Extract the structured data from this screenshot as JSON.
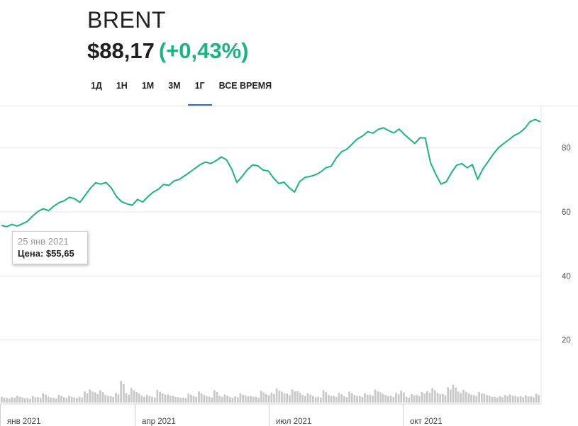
{
  "header": {
    "title": "BRENT",
    "price": "$88,17",
    "change": "(+0,43%)"
  },
  "colors": {
    "line": "#1ab482",
    "up": "#1ab482",
    "volume": "#c8c8c8",
    "tab_active": "#2d6fd1",
    "grid": "#e6e6e6"
  },
  "tabs": [
    {
      "label": "1Д",
      "active": false
    },
    {
      "label": "1Н",
      "active": false
    },
    {
      "label": "1М",
      "active": false
    },
    {
      "label": "3М",
      "active": false
    },
    {
      "label": "1Г",
      "active": true
    },
    {
      "label": "ВСЕ ВРЕМЯ",
      "active": false
    }
  ],
  "tooltip": {
    "date": "25 янв 2021",
    "price_label": "Цена:",
    "price_value": "$55,65"
  },
  "chart_data": {
    "type": "line",
    "ylim": [
      0,
      93
    ],
    "yticks": [
      20,
      40,
      60,
      80
    ],
    "xticks": [
      "янв 2021",
      "апр 2021",
      "июл 2021",
      "окт 2021"
    ],
    "grid": true,
    "series": [
      {
        "values": [
          55.8,
          55.4,
          56.1,
          55.6,
          56.3,
          57.1,
          58.8,
          60.2,
          61.0,
          60.4,
          61.8,
          62.9,
          63.5,
          64.6,
          64.1,
          63.0,
          65.2,
          67.4,
          69.1,
          68.7,
          69.2,
          67.5,
          64.8,
          63.2,
          62.5,
          62.1,
          63.9,
          63.1,
          64.8,
          66.2,
          67.1,
          68.6,
          68.3,
          69.7,
          70.2,
          71.3,
          72.4,
          73.6,
          74.8,
          75.6,
          75.1,
          76.0,
          77.2,
          76.3,
          73.4,
          69.2,
          71.1,
          73.2,
          74.7,
          74.4,
          73.1,
          72.8,
          70.6,
          68.9,
          69.3,
          67.6,
          66.2,
          69.5,
          70.8,
          71.1,
          71.6,
          72.5,
          73.8,
          74.3,
          76.9,
          78.8,
          79.6,
          81.2,
          82.8,
          83.7,
          85.1,
          84.6,
          85.8,
          86.3,
          85.4,
          84.7,
          85.9,
          84.2,
          82.8,
          81.4,
          83.2,
          83.1,
          75.4,
          71.8,
          68.7,
          69.4,
          72.3,
          74.6,
          75.1,
          73.8,
          74.8,
          70.2,
          73.4,
          75.7,
          78.1,
          80.1,
          81.4,
          82.6,
          83.9,
          84.7,
          86.1,
          88.2,
          88.9,
          88.17
        ]
      }
    ],
    "volume": {
      "values": [
        1.4,
        1.1,
        1.3,
        1.6,
        1.2,
        1.0,
        1.5,
        1.3,
        2.2,
        1.4,
        1.1,
        1.8,
        1.3,
        1.6,
        1.2,
        1.4,
        2.6,
        3.1,
        2.4,
        2.9,
        1.8,
        1.6,
        2.3,
        5.1,
        2.2,
        3.4,
        2.5,
        1.6,
        1.8,
        1.4,
        3.0,
        2.2,
        1.9,
        1.6,
        1.3,
        1.2,
        2.1,
        1.6,
        2.6,
        1.8,
        1.4,
        2.9,
        1.6,
        1.9,
        1.3,
        1.5,
        2.2,
        1.7,
        1.6,
        1.4,
        2.8,
        2.0,
        2.4,
        3.3,
        2.6,
        2.1,
        3.1,
        2.7,
        1.8,
        2.2,
        1.5,
        1.4,
        2.9,
        1.8,
        1.6,
        2.3,
        1.5,
        2.6,
        1.8,
        1.6,
        2.2,
        1.9,
        3.1,
        2.4,
        1.8,
        1.6,
        2.3,
        2.8,
        1.4,
        2.0,
        1.8,
        2.5,
        2.7,
        3.4,
        2.3,
        2.0,
        3.6,
        4.2,
        2.6,
        3.0,
        2.2,
        1.8,
        2.5,
        2.1,
        1.6,
        1.4,
        1.5,
        1.8,
        1.9,
        1.6,
        1.5,
        1.7,
        1.5,
        2.1
      ]
    }
  }
}
